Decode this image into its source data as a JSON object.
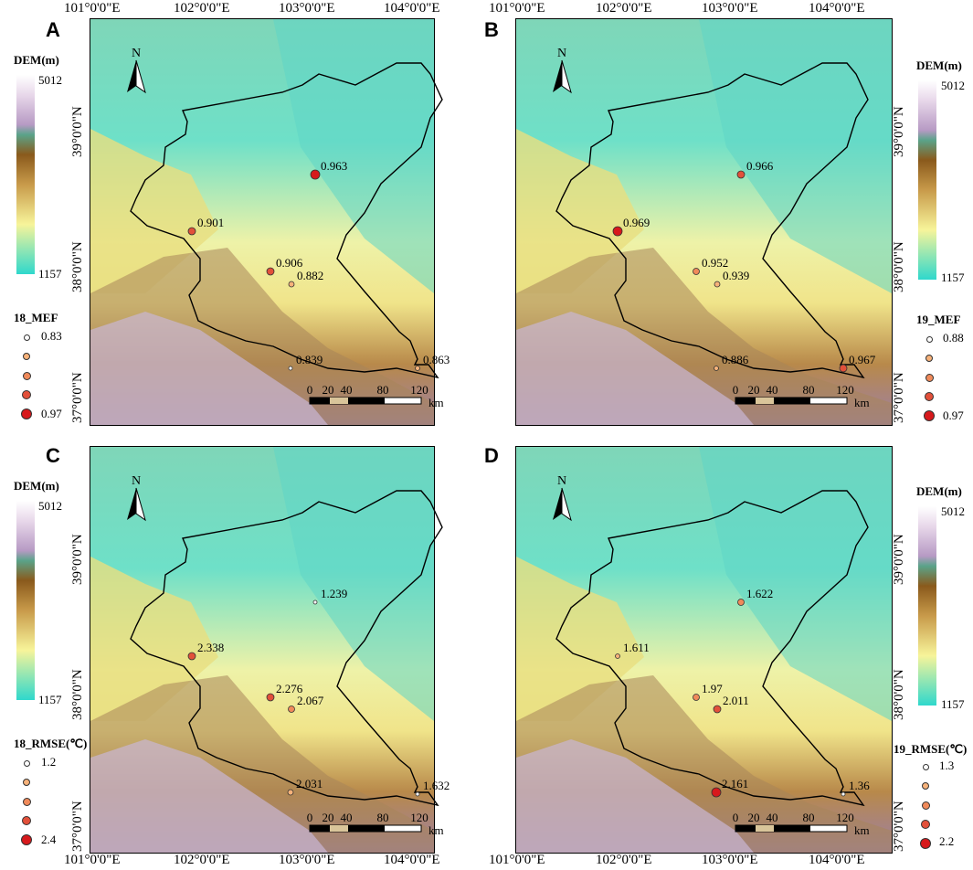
{
  "panels": [
    {
      "id": "A",
      "legend": {
        "title": "DEM(m)",
        "max": "5012",
        "min": "1157",
        "metric": "18_MEF",
        "sizes": [
          "0.83",
          "0.97"
        ]
      },
      "points": [
        {
          "label": "0.963"
        },
        {
          "label": "0.901"
        },
        {
          "label": "0.906"
        },
        {
          "label": "0.882"
        },
        {
          "label": "0.839"
        },
        {
          "label": "0.863"
        }
      ]
    },
    {
      "id": "B",
      "legend": {
        "title": "DEM(m)",
        "max": "5012",
        "min": "1157",
        "metric": "19_MEF",
        "sizes": [
          "0.88",
          "0.97"
        ]
      },
      "points": [
        {
          "label": "0.966"
        },
        {
          "label": "0.969"
        },
        {
          "label": "0.952"
        },
        {
          "label": "0.939"
        },
        {
          "label": "0.886"
        },
        {
          "label": "0.967"
        }
      ]
    },
    {
      "id": "C",
      "legend": {
        "title": "DEM(m)",
        "max": "5012",
        "min": "1157",
        "metric": "18_RMSE(℃)",
        "sizes": [
          "1.2",
          "2.4"
        ]
      },
      "points": [
        {
          "label": "1.239"
        },
        {
          "label": "2.338"
        },
        {
          "label": "2.276"
        },
        {
          "label": "2.067"
        },
        {
          "label": "2.031"
        },
        {
          "label": "1.632"
        }
      ]
    },
    {
      "id": "D",
      "legend": {
        "title": "DEM(m)",
        "max": "5012",
        "min": "1157",
        "metric": "19_RMSE(℃)",
        "sizes": [
          "1.3",
          "2.2"
        ]
      },
      "points": [
        {
          "label": "1.622"
        },
        {
          "label": "1.611"
        },
        {
          "label": "1.97"
        },
        {
          "label": "2.011"
        },
        {
          "label": "2.161"
        },
        {
          "label": "1.36"
        }
      ]
    }
  ],
  "lon_ticks": [
    "101°0'0\"E",
    "102°0'0\"E",
    "103°0'0\"E",
    "104°0'0\"E"
  ],
  "lat_ticks": [
    "39°0'0\"N",
    "38°0'0\"N",
    "37°0'0\"N"
  ],
  "scalebar": {
    "ticks": [
      "0",
      "20",
      "40",
      "80",
      "120"
    ],
    "unit": "km"
  },
  "north": "N",
  "colors": {
    "low": "#2fd8cc",
    "mid": "#f7f49a",
    "high": "#8a5a1c",
    "peak": "#f4f0f8",
    "boundary": "#000000"
  }
}
